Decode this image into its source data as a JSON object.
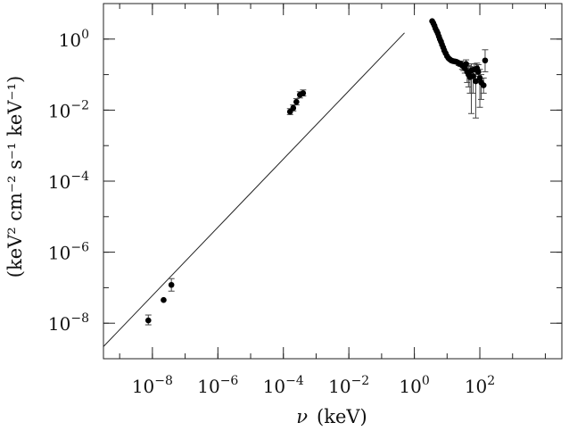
{
  "chart_data": {
    "type": "scatter",
    "xscale": "log",
    "yscale": "log",
    "xlim": [
      3.2e-10,
      32000
    ],
    "ylim": [
      1e-09,
      10
    ],
    "xlabel_sym": "ν",
    "xlabel_unit": "(keV)",
    "ylabel": "(keV² cm⁻² s⁻¹ keV⁻¹)",
    "grid": false,
    "x_ticks": [
      {
        "value": 1e-08,
        "base": "10",
        "exp": "−8"
      },
      {
        "value": 1e-06,
        "base": "10",
        "exp": "−6"
      },
      {
        "value": 0.0001,
        "base": "10",
        "exp": "−4"
      },
      {
        "value": 0.01,
        "base": "10",
        "exp": "−2"
      },
      {
        "value": 1,
        "base": "10",
        "exp": "0"
      },
      {
        "value": 100,
        "base": "10",
        "exp": "2"
      }
    ],
    "y_ticks": [
      {
        "value": 1e-08,
        "base": "10",
        "exp": "−8"
      },
      {
        "value": 1e-06,
        "base": "10",
        "exp": "−6"
      },
      {
        "value": 0.0001,
        "base": "10",
        "exp": "−4"
      },
      {
        "value": 0.01,
        "base": "10",
        "exp": "−2"
      },
      {
        "value": 1,
        "base": "10",
        "exp": "0"
      }
    ],
    "model_line": {
      "x": [
        3.2e-10,
        0.5
      ],
      "y": [
        2.2e-09,
        1.5
      ]
    },
    "series": [
      {
        "points": [
          {
            "x": 7.5e-09,
            "y": 1.2e-08,
            "ylo": 9e-09,
            "yhi": 1.7e-08
          },
          {
            "x": 2.2e-08,
            "y": 4.5e-08
          },
          {
            "x": 3.8e-08,
            "y": 1.2e-07,
            "ylo": 8e-08,
            "yhi": 1.8e-07
          },
          {
            "x": 0.00016,
            "y": 0.009,
            "ylo": 0.0075,
            "yhi": 0.011
          },
          {
            "x": 0.0002,
            "y": 0.0115,
            "ylo": 0.0095,
            "yhi": 0.014
          },
          {
            "x": 0.00025,
            "y": 0.017,
            "ylo": 0.014,
            "yhi": 0.021
          },
          {
            "x": 0.00032,
            "y": 0.027,
            "ylo": 0.022,
            "yhi": 0.033
          },
          {
            "x": 0.0004,
            "y": 0.03,
            "ylo": 0.025,
            "yhi": 0.037
          },
          {
            "x": 3.5,
            "y": 3.2
          },
          {
            "x": 3.8,
            "y": 2.8
          },
          {
            "x": 4.1,
            "y": 2.4
          },
          {
            "x": 4.4,
            "y": 2.0
          },
          {
            "x": 4.8,
            "y": 1.7
          },
          {
            "x": 5.2,
            "y": 1.45
          },
          {
            "x": 5.6,
            "y": 1.2
          },
          {
            "x": 6.0,
            "y": 1.0
          },
          {
            "x": 6.5,
            "y": 0.85
          },
          {
            "x": 7.0,
            "y": 0.7
          },
          {
            "x": 7.6,
            "y": 0.58
          },
          {
            "x": 8.2,
            "y": 0.48
          },
          {
            "x": 9.0,
            "y": 0.4
          },
          {
            "x": 10,
            "y": 0.33
          },
          {
            "x": 11,
            "y": 0.29
          },
          {
            "x": 12,
            "y": 0.27
          },
          {
            "x": 13.5,
            "y": 0.25
          },
          {
            "x": 15,
            "y": 0.24
          },
          {
            "x": 17,
            "y": 0.235
          },
          {
            "x": 19,
            "y": 0.23
          },
          {
            "x": 21,
            "y": 0.22
          },
          {
            "x": 23,
            "y": 0.21,
            "ylo": 0.18,
            "yhi": 0.24
          },
          {
            "x": 26,
            "y": 0.2,
            "ylo": 0.17,
            "yhi": 0.24
          },
          {
            "x": 29,
            "y": 0.18,
            "ylo": 0.14,
            "yhi": 0.22
          },
          {
            "x": 32,
            "y": 0.17,
            "ylo": 0.13,
            "yhi": 0.22
          },
          {
            "x": 35,
            "y": 0.15,
            "ylo": 0.11,
            "yhi": 0.2
          },
          {
            "x": 38,
            "y": 0.2,
            "ylo": 0.15,
            "yhi": 0.26
          },
          {
            "x": 41,
            "y": 0.12,
            "ylo": 0.06,
            "yhi": 0.2
          },
          {
            "x": 45,
            "y": 0.1,
            "ylo": 0.045,
            "yhi": 0.18
          },
          {
            "x": 50,
            "y": 0.085,
            "ylo": 0.03,
            "yhi": 0.17
          },
          {
            "x": 55,
            "y": 0.13,
            "ylo": 0.008,
            "yhi": 0.2
          },
          {
            "x": 62,
            "y": 0.09,
            "ylo": 0.03,
            "yhi": 0.16
          },
          {
            "x": 68,
            "y": 0.14,
            "ylo": 0.09,
            "yhi": 0.2
          },
          {
            "x": 75,
            "y": 0.065,
            "ylo": 0.006,
            "yhi": 0.12
          },
          {
            "x": 82,
            "y": 0.15,
            "ylo": 0.1,
            "yhi": 0.21
          },
          {
            "x": 90,
            "y": 0.12,
            "ylo": 0.07,
            "yhi": 0.19
          },
          {
            "x": 100,
            "y": 0.08,
            "ylo": 0.012,
            "yhi": 0.14
          },
          {
            "x": 110,
            "y": 0.06,
            "ylo": 0.02,
            "yhi": 0.1
          },
          {
            "x": 130,
            "y": 0.05,
            "ylo": 0.03,
            "yhi": 0.08
          },
          {
            "x": 145,
            "y": 0.25,
            "ylo": 0.12,
            "yhi": 0.5
          }
        ]
      }
    ]
  }
}
